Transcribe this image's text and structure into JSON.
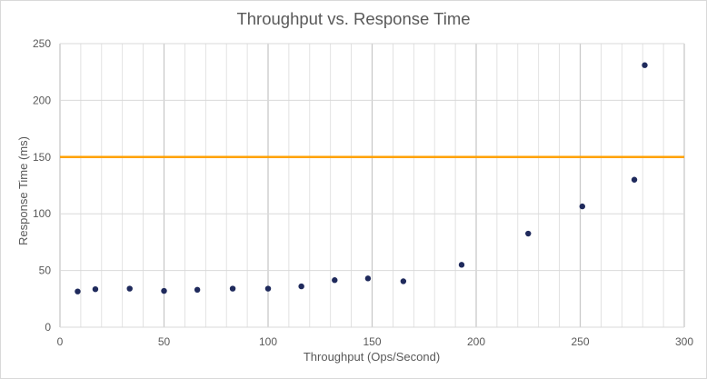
{
  "chart_data": {
    "type": "scatter",
    "title": "Throughput vs. Response Time",
    "xlabel": "Throughput  (Ops/Second)",
    "ylabel": "Response Time (ms)",
    "xlim": [
      0,
      300
    ],
    "ylim": [
      0,
      250
    ],
    "x_ticks": [
      0,
      50,
      100,
      150,
      200,
      250,
      300
    ],
    "y_ticks": [
      0,
      50,
      100,
      150,
      200,
      250
    ],
    "x_minor_step": 10,
    "grid": true,
    "legend": "none",
    "series": [
      {
        "color": "#1f2a5c",
        "points": [
          {
            "x": 8.5,
            "y": 31.5
          },
          {
            "x": 17,
            "y": 33.5
          },
          {
            "x": 33.5,
            "y": 34
          },
          {
            "x": 50,
            "y": 32
          },
          {
            "x": 66,
            "y": 33
          },
          {
            "x": 83,
            "y": 34
          },
          {
            "x": 100,
            "y": 34
          },
          {
            "x": 116,
            "y": 36
          },
          {
            "x": 132,
            "y": 41.5
          },
          {
            "x": 148,
            "y": 43
          },
          {
            "x": 165,
            "y": 40.5
          },
          {
            "x": 193,
            "y": 55
          },
          {
            "x": 225,
            "y": 82.5
          },
          {
            "x": 251,
            "y": 106.5
          },
          {
            "x": 276,
            "y": 130
          },
          {
            "x": 281,
            "y": 231
          }
        ]
      }
    ],
    "threshold_line": {
      "y": 150,
      "color": "#ffa200"
    },
    "colors": {
      "grid": "#d9d9d9",
      "major_grid": "#c8c8c8",
      "text": "#595959"
    }
  }
}
